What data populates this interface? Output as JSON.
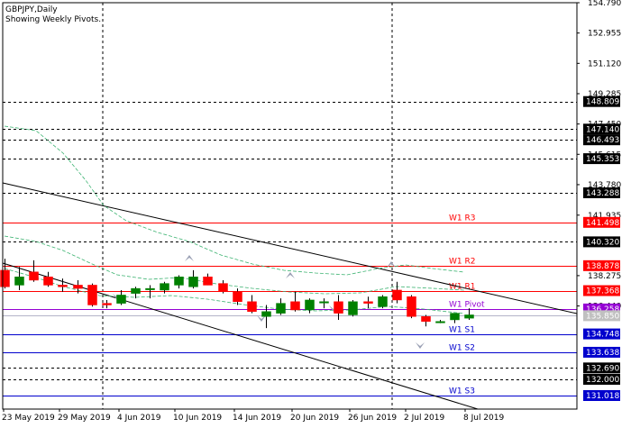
{
  "header": {
    "symbol_line": "GBPJPY,Daily",
    "info_line": "Showing Weekly Pivots."
  },
  "colors": {
    "background": "#ffffff",
    "grid": "#000000",
    "bull_candle": "#008000",
    "bear_candle": "#ff0000",
    "resistance": "#ff0000",
    "support": "#0000cd",
    "pivot": "#9400d3",
    "envelope": "#3cb371",
    "fractal": "#9aa0b4",
    "channel": "#000000"
  },
  "chart_data": {
    "type": "candlestick",
    "symbol": "GBPJPY",
    "timeframe": "Daily",
    "x_tick_labels": [
      "23 May 2019",
      "29 May 2019",
      "4 Jun 2019",
      "10 Jun 2019",
      "14 Jun 2019",
      "20 Jun 2019",
      "26 Jun 2019",
      "2 Jul 2019",
      "8 Jul 2019"
    ],
    "y_scale_labels": [
      {
        "value": 154.79,
        "label": "154.790"
      },
      {
        "value": 152.955,
        "label": "152.955"
      },
      {
        "value": 151.12,
        "label": "151.120"
      },
      {
        "value": 149.285,
        "label": "149.285"
      },
      {
        "value": 147.45,
        "label": "147.450"
      },
      {
        "value": 145.615,
        "label": "145.615"
      },
      {
        "value": 143.78,
        "label": "143.780"
      },
      {
        "value": 141.935,
        "label": "141.935"
      },
      {
        "value": 138.275,
        "label": "138.275"
      },
      {
        "value": 136.44,
        "label": "136.440"
      }
    ],
    "y_range": [
      130.2,
      154.79
    ],
    "level_tags": [
      {
        "value": 148.809,
        "label": "148.809",
        "kind": "level"
      },
      {
        "value": 147.14,
        "label": "147.140",
        "kind": "level"
      },
      {
        "value": 146.493,
        "label": "146.493",
        "kind": "level"
      },
      {
        "value": 145.353,
        "label": "145.353",
        "kind": "level"
      },
      {
        "value": 143.288,
        "label": "143.288",
        "kind": "level"
      },
      {
        "value": 141.498,
        "label": "141.498",
        "kind": "resistance"
      },
      {
        "value": 140.32,
        "label": "140.320",
        "kind": "level"
      },
      {
        "value": 138.878,
        "label": "138.878",
        "kind": "resistance"
      },
      {
        "value": 137.368,
        "label": "137.368",
        "kind": "resistance"
      },
      {
        "value": 136.258,
        "label": "136.258",
        "kind": "pivot"
      },
      {
        "value": 135.85,
        "label": "135.850",
        "kind": "bid"
      },
      {
        "value": 134.748,
        "label": "134.748",
        "kind": "support"
      },
      {
        "value": 133.638,
        "label": "133.638",
        "kind": "support"
      },
      {
        "value": 132.69,
        "label": "132.690",
        "kind": "level"
      },
      {
        "value": 132.0,
        "label": "132.000",
        "kind": "level"
      },
      {
        "value": 131.018,
        "label": "131.018",
        "kind": "support"
      }
    ],
    "pivot_lines": [
      {
        "name": "W1  R3",
        "value": 141.498,
        "kind": "resistance"
      },
      {
        "name": "W1  R2",
        "value": 138.878,
        "kind": "resistance"
      },
      {
        "name": "W1  R1",
        "value": 137.368,
        "kind": "resistance"
      },
      {
        "name": "W1  Pivot",
        "value": 136.258,
        "kind": "pivot"
      },
      {
        "name": "W1  S1",
        "value": 134.748,
        "kind": "support"
      },
      {
        "name": "W1  S2",
        "value": 133.638,
        "kind": "support"
      },
      {
        "name": "W1  S3",
        "value": 131.018,
        "kind": "support"
      }
    ],
    "candles": [
      {
        "o": 138.6,
        "h": 139.3,
        "l": 137.5,
        "c": 137.6
      },
      {
        "o": 137.7,
        "h": 138.8,
        "l": 137.4,
        "c": 138.2
      },
      {
        "o": 138.5,
        "h": 139.2,
        "l": 137.9,
        "c": 138.0
      },
      {
        "o": 138.2,
        "h": 138.5,
        "l": 137.6,
        "c": 137.7
      },
      {
        "o": 137.7,
        "h": 138.1,
        "l": 137.3,
        "c": 137.6
      },
      {
        "o": 137.7,
        "h": 138.0,
        "l": 137.2,
        "c": 137.5
      },
      {
        "o": 137.7,
        "h": 137.8,
        "l": 136.4,
        "c": 136.5
      },
      {
        "o": 136.6,
        "h": 136.8,
        "l": 136.3,
        "c": 136.5
      },
      {
        "o": 136.6,
        "h": 137.4,
        "l": 136.5,
        "c": 137.1
      },
      {
        "o": 137.2,
        "h": 137.6,
        "l": 136.9,
        "c": 137.5
      },
      {
        "o": 137.5,
        "h": 137.7,
        "l": 136.9,
        "c": 137.5
      },
      {
        "o": 137.4,
        "h": 137.9,
        "l": 137.2,
        "c": 137.8
      },
      {
        "o": 137.7,
        "h": 138.3,
        "l": 137.5,
        "c": 138.2
      },
      {
        "o": 137.6,
        "h": 138.6,
        "l": 137.5,
        "c": 138.2
      },
      {
        "o": 138.2,
        "h": 138.4,
        "l": 137.7,
        "c": 137.7
      },
      {
        "o": 137.8,
        "h": 138.0,
        "l": 137.2,
        "c": 137.3
      },
      {
        "o": 137.3,
        "h": 137.5,
        "l": 136.5,
        "c": 136.7
      },
      {
        "o": 136.7,
        "h": 137.1,
        "l": 136.0,
        "c": 136.1
      },
      {
        "o": 135.8,
        "h": 136.5,
        "l": 135.1,
        "c": 136.1
      },
      {
        "o": 136.0,
        "h": 136.9,
        "l": 135.9,
        "c": 136.6
      },
      {
        "o": 136.7,
        "h": 137.3,
        "l": 136.1,
        "c": 136.2
      },
      {
        "o": 136.2,
        "h": 136.9,
        "l": 136.0,
        "c": 136.8
      },
      {
        "o": 136.7,
        "h": 136.9,
        "l": 136.3,
        "c": 136.7
      },
      {
        "o": 136.7,
        "h": 137.1,
        "l": 135.6,
        "c": 136.0
      },
      {
        "o": 135.9,
        "h": 136.8,
        "l": 135.8,
        "c": 136.7
      },
      {
        "o": 136.7,
        "h": 137.0,
        "l": 136.3,
        "c": 136.6
      },
      {
        "o": 136.4,
        "h": 137.1,
        "l": 136.3,
        "c": 137.0
      },
      {
        "o": 137.4,
        "h": 137.9,
        "l": 136.6,
        "c": 136.8
      },
      {
        "o": 137.0,
        "h": 137.1,
        "l": 135.7,
        "c": 135.8
      },
      {
        "o": 135.8,
        "h": 135.9,
        "l": 135.2,
        "c": 135.5
      },
      {
        "o": 135.5,
        "h": 135.6,
        "l": 135.4,
        "c": 135.5
      },
      {
        "o": 135.6,
        "h": 136.0,
        "l": 135.4,
        "c": 136.0
      },
      {
        "o": 135.7,
        "h": 136.3,
        "l": 135.6,
        "c": 135.9
      }
    ]
  }
}
